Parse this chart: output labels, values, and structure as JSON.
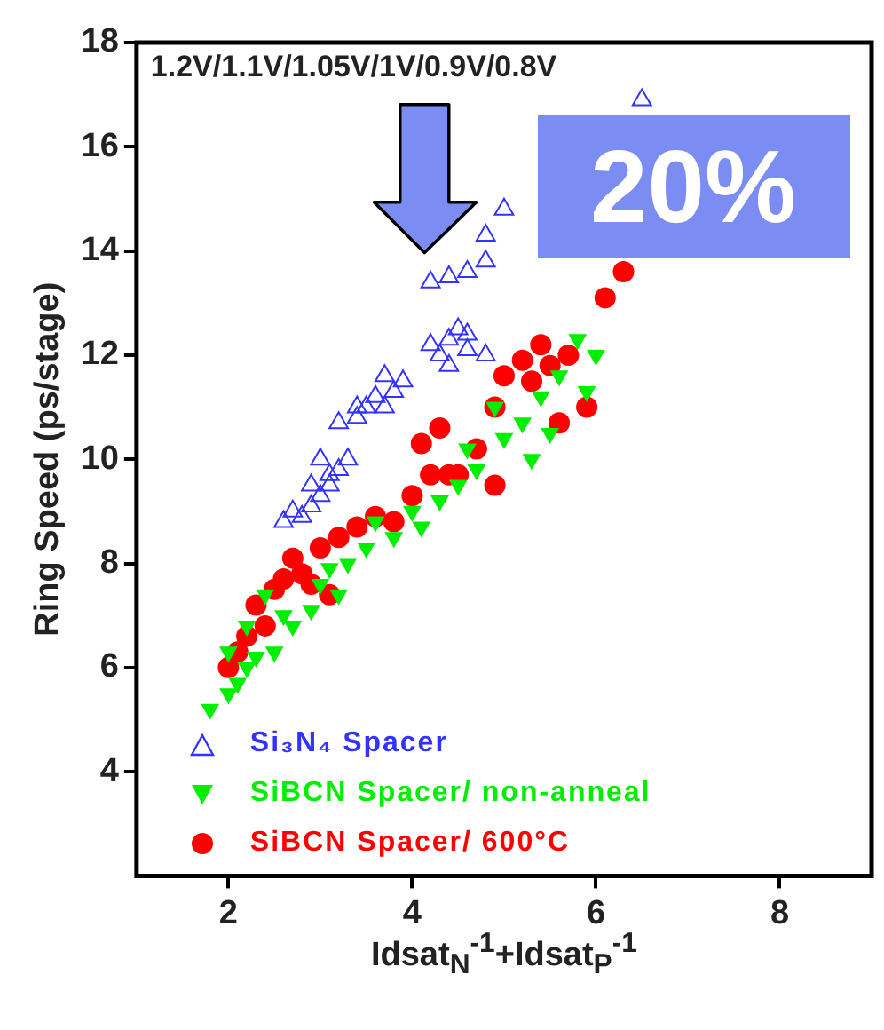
{
  "chart_data": {
    "type": "scatter",
    "xlabel": "Idsat$_{N}$$^{-1}$+Idsat$_{P}$$^{-1}$",
    "ylabel": "Ring Speed (ps/stage)",
    "xlim": [
      1,
      9
    ],
    "ylim": [
      2,
      18
    ],
    "xticks": [
      2,
      4,
      6,
      8
    ],
    "yticks": [
      4,
      6,
      8,
      10,
      12,
      14,
      16,
      18
    ],
    "legend": "bottom",
    "annotations": [
      "1.2V/1.1V/1.05V/1V/0.9V/0.8V",
      "20%"
    ],
    "series": [
      {
        "name": "Si₃N₄ Spacer",
        "color": "#3333ff",
        "marker": "triangle",
        "x": [
          2.6,
          2.8,
          2.9,
          3.0,
          3.1,
          2.7,
          3.2,
          3.0,
          3.3,
          3.1,
          2.9,
          3.2,
          3.4,
          3.5,
          3.6,
          3.8,
          3.4,
          3.7,
          3.9,
          3.7,
          4.3,
          4.4,
          4.5,
          4.6,
          4.8,
          4.4,
          4.6,
          4.2,
          4.2,
          4.4,
          4.6,
          4.8,
          4.8,
          5.0,
          6.5
        ],
        "values": [
          8.8,
          8.9,
          9.1,
          9.3,
          9.5,
          9.0,
          9.8,
          10.0,
          10.0,
          9.7,
          9.5,
          10.7,
          10.8,
          11.0,
          11.2,
          11.3,
          11.0,
          11.0,
          11.5,
          11.6,
          12.0,
          12.3,
          12.5,
          12.1,
          12.0,
          11.8,
          12.4,
          12.2,
          13.4,
          13.5,
          13.6,
          13.8,
          14.3,
          14.8,
          16.9
        ]
      },
      {
        "name": "SiBCN Spacer/ non-anneal",
        "color": "#00ee00",
        "marker": "triangle-down",
        "x": [
          1.8,
          2.0,
          2.1,
          2.2,
          2.3,
          2.0,
          2.2,
          2.5,
          2.7,
          2.9,
          3.0,
          2.4,
          3.2,
          3.3,
          3.5,
          3.8,
          4.1,
          4.0,
          3.6,
          4.3,
          4.5,
          4.7,
          4.6,
          5.0,
          5.3,
          5.5,
          4.9,
          5.4,
          5.6,
          5.9,
          6.0,
          5.8,
          5.2,
          2.6,
          3.1
        ],
        "values": [
          5.2,
          5.5,
          5.7,
          6.0,
          6.2,
          6.3,
          6.8,
          6.3,
          6.8,
          7.1,
          7.6,
          7.4,
          7.4,
          8.0,
          8.3,
          8.5,
          8.7,
          9.0,
          8.8,
          9.2,
          9.5,
          9.8,
          10.2,
          10.4,
          10.0,
          10.5,
          11.0,
          11.2,
          11.6,
          11.3,
          12.0,
          12.3,
          10.7,
          7.0,
          7.9
        ]
      },
      {
        "name": "SiBCN Spacer/ 600°C",
        "color": "#ff0000",
        "marker": "circle",
        "x": [
          2.0,
          2.1,
          2.2,
          2.4,
          2.3,
          2.5,
          2.6,
          2.8,
          2.7,
          3.0,
          3.2,
          3.4,
          3.6,
          3.8,
          2.9,
          3.1,
          4.0,
          4.2,
          4.4,
          4.5,
          4.7,
          4.3,
          4.1,
          4.9,
          5.0,
          5.2,
          5.3,
          5.4,
          5.6,
          5.5,
          5.9,
          5.7,
          6.1,
          6.3,
          4.9
        ],
        "values": [
          6.0,
          6.3,
          6.6,
          6.8,
          7.2,
          7.5,
          7.7,
          7.8,
          8.1,
          8.3,
          8.5,
          8.7,
          8.9,
          8.8,
          7.6,
          7.4,
          9.3,
          9.7,
          9.7,
          9.7,
          10.2,
          10.6,
          10.3,
          11.0,
          11.6,
          11.9,
          11.5,
          12.2,
          10.7,
          11.8,
          11.0,
          12.0,
          13.1,
          13.6,
          9.5
        ]
      }
    ]
  }
}
